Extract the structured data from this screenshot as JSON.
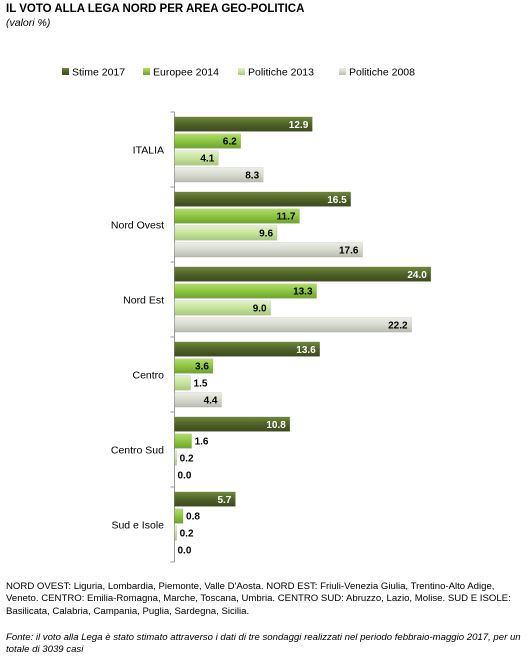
{
  "title": "IL VOTO ALLA LEGA NORD PER AREA GEO-POLITICA",
  "subtitle": "(valori %)",
  "footnote": "NORD OVEST: Liguria, Lombardia, Piemonte, Valle D'Aosta. NORD EST: Friuli-Venezia Giulia, Trentino-Alto Adige, Veneto. CENTRO: Emilia-Romagna, Marche, Toscana, Umbria. CENTRO SUD: Abruzzo, Lazio, Molise. SUD E ISOLE: Basilicata, Calabria, Campania, Puglia, Sardegna, Sicilia.",
  "source": "Fonte: il voto alla Lega è stato stimato attraverso i dati di tre sondaggi realizzati nel periodo febbraio-maggio 2017, per un totale di 3039 casi",
  "chart_data": {
    "type": "bar",
    "orientation": "horizontal",
    "title": "IL VOTO ALLA LEGA NORD PER AREA GEO-POLITICA",
    "subtitle": "(valori %)",
    "categories": [
      "ITALIA",
      "Nord Ovest",
      "Nord Est",
      "Centro",
      "Centro Sud",
      "Sud e Isole"
    ],
    "series": [
      {
        "name": "Stime 2017",
        "color": "#4f6228",
        "values": [
          12.9,
          16.5,
          24.0,
          13.6,
          10.8,
          5.7
        ]
      },
      {
        "name": "Europee 2014",
        "color": "#8cc63f",
        "values": [
          6.2,
          11.7,
          13.3,
          3.6,
          1.6,
          0.8
        ]
      },
      {
        "name": "Politiche 2013",
        "color": "#c6e49b",
        "values": [
          4.1,
          9.6,
          9.0,
          1.5,
          0.2,
          0.2
        ]
      },
      {
        "name": "Politiche 2008",
        "color": "#d6d9cd",
        "values": [
          8.3,
          17.6,
          22.2,
          4.4,
          0.0,
          0.0
        ]
      }
    ],
    "xlim": [
      0,
      30
    ],
    "legend": "top",
    "grid": false
  }
}
